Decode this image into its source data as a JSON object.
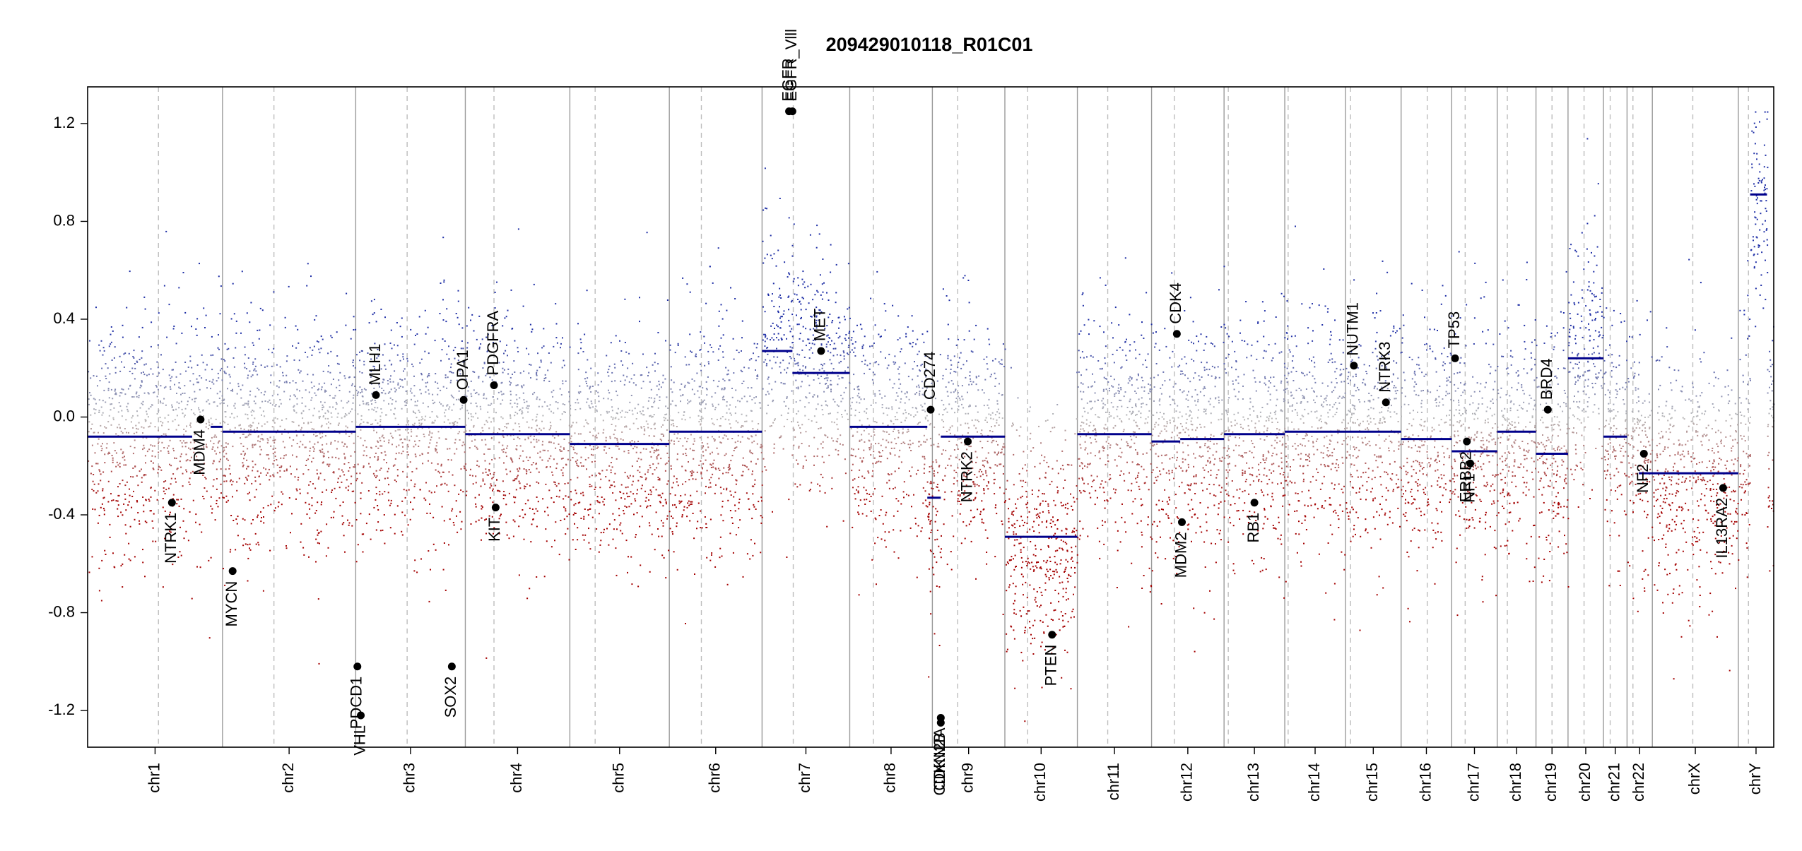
{
  "chart_data": {
    "type": "scatter",
    "title": "209429010118_R01C01",
    "xlabel": "",
    "ylabel": "",
    "ylim": [
      -1.35,
      1.35
    ],
    "yticks": [
      -1.2,
      -0.8,
      -0.4,
      0.0,
      0.4,
      0.8,
      1.2
    ],
    "ytick_labels": [
      "-1.2",
      "-0.8",
      "-0.4",
      "0.0",
      "0.4",
      "0.8",
      "1.2"
    ],
    "grid": false,
    "clip_range": [
      -1.25,
      1.25
    ],
    "colors": {
      "gain": "#1f2fa6",
      "loss": "#a40000",
      "neutral": "#b8b8b8",
      "segment": "#00008b",
      "boundary": "#9a9a9a",
      "centromere": "#bdbdbd",
      "gene_point": "#000000"
    },
    "chromosomes": [
      {
        "name": "chr1",
        "start": 0.0,
        "end": 8.0,
        "centromere": 4.2
      },
      {
        "name": "chr2",
        "start": 8.0,
        "end": 15.9,
        "centromere": 11.05
      },
      {
        "name": "chr3",
        "start": 15.9,
        "end": 22.4,
        "centromere": 18.95
      },
      {
        "name": "chr4",
        "start": 22.4,
        "end": 28.6,
        "centromere": 24.1
      },
      {
        "name": "chr5",
        "start": 28.6,
        "end": 34.5,
        "centromere": 30.1
      },
      {
        "name": "chr6",
        "start": 34.5,
        "end": 40.0,
        "centromere": 36.4
      },
      {
        "name": "chr7",
        "start": 40.0,
        "end": 45.2,
        "centromere": 41.85
      },
      {
        "name": "chr8",
        "start": 45.2,
        "end": 50.1,
        "centromere": 46.6
      },
      {
        "name": "chr9",
        "start": 50.1,
        "end": 54.4,
        "centromere": 51.6
      },
      {
        "name": "chr10",
        "start": 54.4,
        "end": 58.7,
        "centromere": 55.75
      },
      {
        "name": "chr11",
        "start": 58.7,
        "end": 63.1,
        "centromere": 60.5
      },
      {
        "name": "chr12",
        "start": 63.1,
        "end": 67.4,
        "centromere": 64.45
      },
      {
        "name": "chr13",
        "start": 67.4,
        "end": 71.0,
        "centromere": 67.65
      },
      {
        "name": "chr14",
        "start": 71.0,
        "end": 74.6,
        "centromere": 71.2
      },
      {
        "name": "chr15",
        "start": 74.6,
        "end": 77.9,
        "centromere": 74.9
      },
      {
        "name": "chr16",
        "start": 77.9,
        "end": 80.9,
        "centromere": 79.45
      },
      {
        "name": "chr17",
        "start": 80.9,
        "end": 83.6,
        "centromere": 81.7
      },
      {
        "name": "chr18",
        "start": 83.6,
        "end": 85.9,
        "centromere": 84.2
      },
      {
        "name": "chr19",
        "start": 85.9,
        "end": 87.8,
        "centromere": 86.85
      },
      {
        "name": "chr20",
        "start": 87.8,
        "end": 89.9,
        "centromere": 88.75
      },
      {
        "name": "chr21",
        "start": 89.9,
        "end": 91.3,
        "centromere": 90.3
      },
      {
        "name": "chr22",
        "start": 91.3,
        "end": 92.8,
        "centromere": 91.65
      },
      {
        "name": "chrX",
        "start": 92.8,
        "end": 97.9,
        "centromere": 95.2
      },
      {
        "name": "chrY",
        "start": 97.9,
        "end": 100.0,
        "centromere": 98.5
      }
    ],
    "segments": [
      {
        "start": 0.0,
        "end": 6.2,
        "value": -0.08
      },
      {
        "start": 7.3,
        "end": 8.0,
        "value": -0.04
      },
      {
        "start": 8.0,
        "end": 15.9,
        "value": -0.06
      },
      {
        "start": 15.9,
        "end": 22.4,
        "value": -0.04
      },
      {
        "start": 22.4,
        "end": 28.6,
        "value": -0.07
      },
      {
        "start": 28.6,
        "end": 34.5,
        "value": -0.11
      },
      {
        "start": 34.5,
        "end": 40.0,
        "value": -0.06
      },
      {
        "start": 40.0,
        "end": 41.8,
        "value": 0.27
      },
      {
        "start": 41.8,
        "end": 45.2,
        "value": 0.18
      },
      {
        "start": 45.2,
        "end": 49.8,
        "value": -0.04
      },
      {
        "start": 49.8,
        "end": 50.6,
        "value": -0.33
      },
      {
        "start": 50.6,
        "end": 54.4,
        "value": -0.08
      },
      {
        "start": 54.4,
        "end": 58.7,
        "value": -0.49
      },
      {
        "start": 58.7,
        "end": 63.1,
        "value": -0.07
      },
      {
        "start": 63.1,
        "end": 64.8,
        "value": -0.1
      },
      {
        "start": 64.8,
        "end": 67.4,
        "value": -0.09
      },
      {
        "start": 67.4,
        "end": 71.0,
        "value": -0.07
      },
      {
        "start": 71.0,
        "end": 74.6,
        "value": -0.06
      },
      {
        "start": 74.6,
        "end": 77.9,
        "value": -0.06
      },
      {
        "start": 77.9,
        "end": 80.9,
        "value": -0.09
      },
      {
        "start": 80.9,
        "end": 83.6,
        "value": -0.14
      },
      {
        "start": 83.6,
        "end": 85.9,
        "value": -0.06
      },
      {
        "start": 85.9,
        "end": 87.8,
        "value": -0.15
      },
      {
        "start": 87.8,
        "end": 89.9,
        "value": 0.24
      },
      {
        "start": 89.9,
        "end": 91.3,
        "value": -0.08
      },
      {
        "start": 92.0,
        "end": 97.9,
        "value": -0.23
      },
      {
        "start": 98.6,
        "end": 99.6,
        "value": 0.91
      }
    ],
    "genes": [
      {
        "name": "NTRK1",
        "x": 5.0,
        "y": -0.35
      },
      {
        "name": "MDM4",
        "x": 6.7,
        "y": -0.01
      },
      {
        "name": "MYCN",
        "x": 8.6,
        "y": -0.63
      },
      {
        "name": "PDCD1",
        "x": 16.0,
        "y": -1.02
      },
      {
        "name": "VHL",
        "x": 16.2,
        "y": -1.22
      },
      {
        "name": "MLH1",
        "x": 17.1,
        "y": 0.09
      },
      {
        "name": "SOX2",
        "x": 21.6,
        "y": -1.02
      },
      {
        "name": "OPA1",
        "x": 22.3,
        "y": 0.07
      },
      {
        "name": "PDGFRA",
        "x": 24.1,
        "y": 0.13
      },
      {
        "name": "KIT",
        "x": 24.2,
        "y": -0.37
      },
      {
        "name": "EGFR",
        "x": 41.6,
        "y": 1.25
      },
      {
        "name": "EGFR_Vlll",
        "x": 41.8,
        "y": 1.25
      },
      {
        "name": "MET",
        "x": 43.5,
        "y": 0.27
      },
      {
        "name": "CD274",
        "x": 50.0,
        "y": 0.03
      },
      {
        "name": "CDKN2A",
        "x": 50.6,
        "y": -1.23
      },
      {
        "name": "CDKN2B",
        "x": 50.6,
        "y": -1.25
      },
      {
        "name": "NTRK2",
        "x": 52.2,
        "y": -0.1
      },
      {
        "name": "PTEN",
        "x": 57.2,
        "y": -0.89
      },
      {
        "name": "CDK4",
        "x": 64.6,
        "y": 0.34
      },
      {
        "name": "MDM2",
        "x": 64.9,
        "y": -0.43
      },
      {
        "name": "RB1",
        "x": 69.2,
        "y": -0.35
      },
      {
        "name": "NUTM1",
        "x": 75.1,
        "y": 0.21
      },
      {
        "name": "NTRK3",
        "x": 77.0,
        "y": 0.06
      },
      {
        "name": "TP53",
        "x": 81.1,
        "y": 0.24
      },
      {
        "name": "ERBB2",
        "x": 81.8,
        "y": -0.1
      },
      {
        "name": "NF1",
        "x": 82.0,
        "y": -0.19
      },
      {
        "name": "BRD4",
        "x": 86.6,
        "y": 0.03
      },
      {
        "name": "NF2",
        "x": 92.3,
        "y": -0.15
      },
      {
        "name": "IL13RA2",
        "x": 97.0,
        "y": -0.29
      }
    ]
  }
}
